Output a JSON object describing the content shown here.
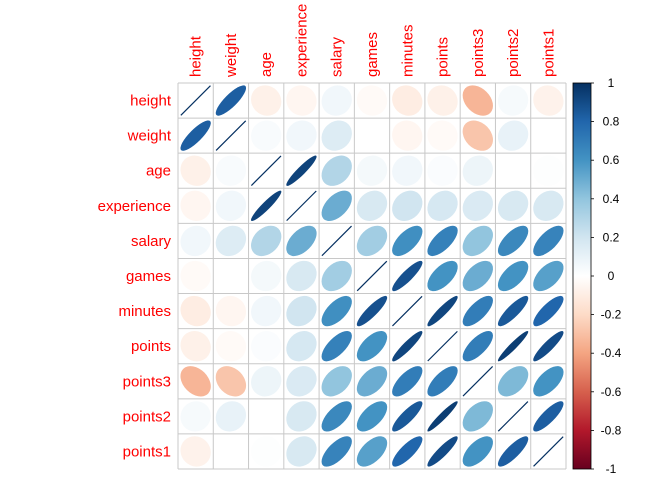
{
  "chart_data": {
    "type": "heatmap",
    "subtype": "correlation-ellipse-matrix",
    "variables": [
      "height",
      "weight",
      "age",
      "experience",
      "salary",
      "games",
      "minutes",
      "points",
      "points3",
      "points2",
      "points1"
    ],
    "matrix": [
      [
        1.0,
        0.83,
        -0.08,
        -0.05,
        0.06,
        -0.03,
        -0.1,
        -0.08,
        -0.34,
        0.04,
        -0.07
      ],
      [
        0.83,
        1.0,
        0.03,
        0.06,
        0.15,
        0.0,
        -0.05,
        -0.03,
        -0.28,
        0.1,
        0.0
      ],
      [
        -0.08,
        0.03,
        1.0,
        0.93,
        0.3,
        0.05,
        0.06,
        0.02,
        0.08,
        0.0,
        0.01
      ],
      [
        -0.05,
        0.06,
        0.93,
        1.0,
        0.5,
        0.17,
        0.2,
        0.18,
        0.16,
        0.17,
        0.17
      ],
      [
        0.06,
        0.15,
        0.3,
        0.5,
        1.0,
        0.35,
        0.62,
        0.68,
        0.4,
        0.65,
        0.67
      ],
      [
        -0.03,
        0.0,
        0.05,
        0.17,
        0.35,
        1.0,
        0.88,
        0.6,
        0.5,
        0.6,
        0.55
      ],
      [
        -0.1,
        -0.05,
        0.06,
        0.2,
        0.62,
        0.88,
        1.0,
        0.92,
        0.7,
        0.85,
        0.8
      ],
      [
        -0.08,
        -0.03,
        0.02,
        0.18,
        0.68,
        0.6,
        0.92,
        1.0,
        0.7,
        0.95,
        0.9
      ],
      [
        -0.34,
        -0.28,
        0.08,
        0.16,
        0.4,
        0.5,
        0.7,
        0.7,
        1.0,
        0.45,
        0.6
      ],
      [
        0.04,
        0.1,
        0.0,
        0.17,
        0.65,
        0.6,
        0.85,
        0.95,
        0.45,
        1.0,
        0.83
      ],
      [
        -0.07,
        0.0,
        0.01,
        0.17,
        0.67,
        0.55,
        0.8,
        0.9,
        0.6,
        0.83,
        1.0
      ]
    ],
    "label_color": "#ff0000",
    "colorbar": {
      "range": [
        -1,
        1
      ],
      "ticks": [
        "1",
        "0.8",
        "0.6",
        "0.4",
        "0.2",
        "0",
        "-0.2",
        "-0.4",
        "-0.6",
        "-0.8",
        "-1"
      ],
      "colors_high_to_low": [
        "#053061",
        "#2166ac",
        "#4393c3",
        "#92c5de",
        "#d1e5f0",
        "#ffffff",
        "#fddbc7",
        "#f4a582",
        "#d6604d",
        "#b2182b",
        "#67001f"
      ]
    },
    "grid": true,
    "legend": "right"
  }
}
